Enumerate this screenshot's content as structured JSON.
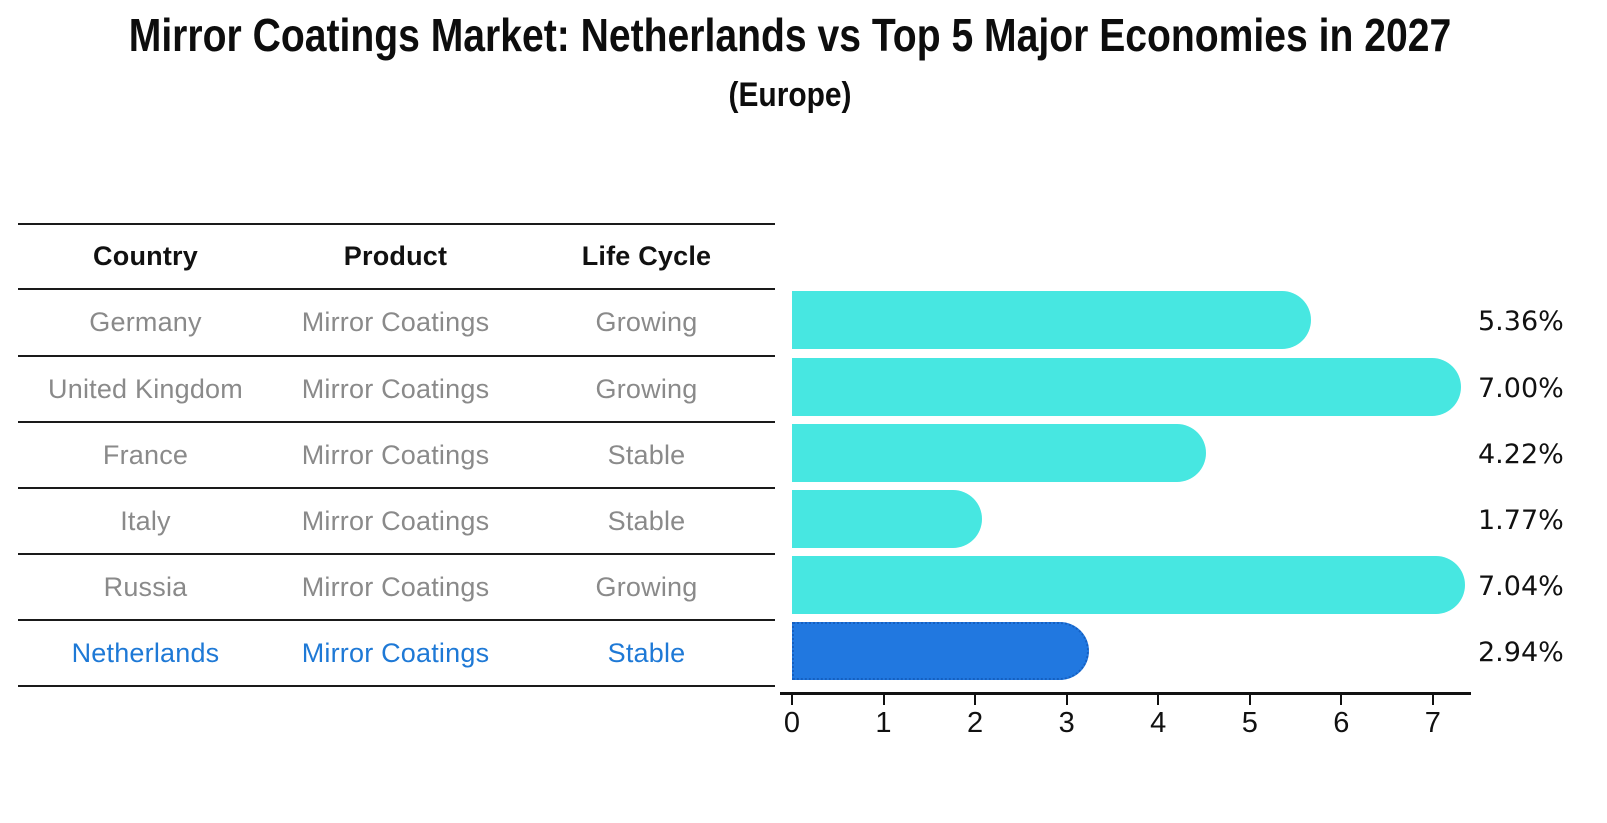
{
  "title": "Mirror Coatings Market: Netherlands vs Top 5 Major Economies in 2027",
  "subtitle": "(Europe)",
  "table": {
    "headers": [
      "Country",
      "Product",
      "Life Cycle"
    ],
    "rows": [
      {
        "country": "Germany",
        "product": "Mirror Coatings",
        "life_cycle": "Growing",
        "highlight": false
      },
      {
        "country": "United Kingdom",
        "product": "Mirror Coatings",
        "life_cycle": "Growing",
        "highlight": false
      },
      {
        "country": "France",
        "product": "Mirror Coatings",
        "life_cycle": "Stable",
        "highlight": false
      },
      {
        "country": "Italy",
        "product": "Mirror Coatings",
        "life_cycle": "Stable",
        "highlight": false
      },
      {
        "country": "Russia",
        "product": "Mirror Coatings",
        "life_cycle": "Growing",
        "highlight": false
      },
      {
        "country": "Netherlands",
        "product": "Mirror Coatings",
        "life_cycle": "Stable",
        "highlight": true
      }
    ]
  },
  "chart_data": {
    "type": "bar",
    "orientation": "horizontal",
    "title": "Mirror Coatings Market: Netherlands vs Top 5 Major Economies in 2027 (Europe)",
    "categories": [
      "Germany",
      "United Kingdom",
      "France",
      "Italy",
      "Russia",
      "Netherlands"
    ],
    "values": [
      5.36,
      7.0,
      4.22,
      1.77,
      7.04,
      2.94
    ],
    "value_labels": [
      "5.36%",
      "7.00%",
      "4.22%",
      "1.77%",
      "7.04%",
      "2.94%"
    ],
    "xticks": [
      "0",
      "1",
      "2",
      "3",
      "4",
      "5",
      "6",
      "7"
    ],
    "xlim": [
      0,
      7.45
    ],
    "grid": false,
    "legend": false,
    "highlight_index": 5,
    "bar_color": "#47E7E1",
    "highlight_color": "#2178E0",
    "highlight_border_color": "#155FC0"
  },
  "colors": {
    "text_muted": "#8a8a8a",
    "text_strong": "#111111",
    "highlight_text": "#1E79D6",
    "line": "#1a1a1a"
  }
}
